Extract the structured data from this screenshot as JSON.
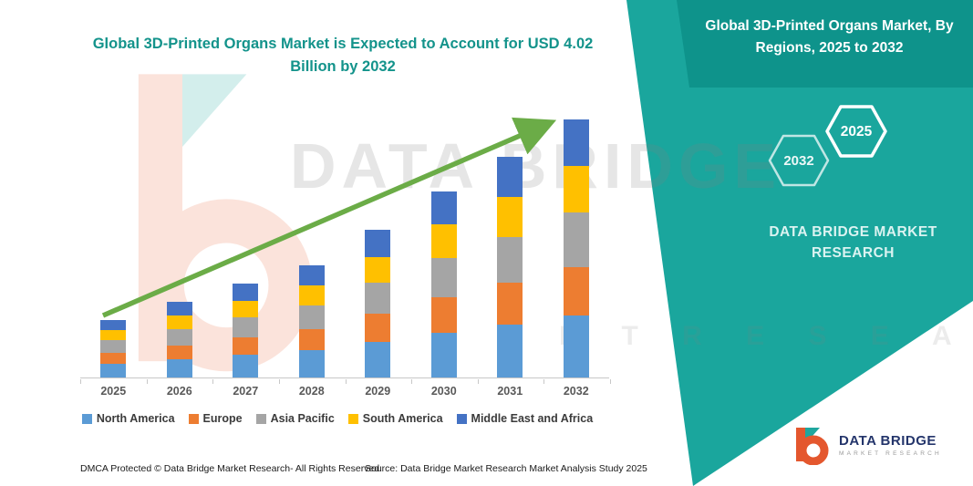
{
  "banner": {
    "title": "Global 3D-Printed Organs Market, By Regions, 2025 to 2032",
    "hex_back_label": "2032",
    "hex_front_label": "2025",
    "brand_text": "DATA BRIDGE MARKET RESEARCH"
  },
  "watermark": {
    "line1": "DATA BRIDGE",
    "line2": "M A R K E T   R E S E A R C H"
  },
  "logo": {
    "title": "DATA BRIDGE",
    "subtitle": "MARKET RESEARCH"
  },
  "footer": {
    "dmca": "DMCA Protected © Data Bridge Market Research-  All Rights Reserved.",
    "source": "Source: Data Bridge Market Research  Market Analysis Study 2025"
  },
  "colors": {
    "teal": "#1AA69D",
    "teal_dark": "#0E938B",
    "title_teal": "#13938B",
    "arrow_green": "#6BAC47",
    "north_america": "#5B9BD5",
    "europe": "#ED7D31",
    "asia_pacific": "#A5A5A5",
    "south_america": "#FFC000",
    "middle_east_africa": "#4472C4"
  },
  "chart_data": {
    "type": "bar",
    "stacked": true,
    "unit": "USD Billion",
    "title": "Global 3D-Printed Organs Market is Expected to Account for USD 4.02 Billion by 2032",
    "categories": [
      "2025",
      "2026",
      "2027",
      "2028",
      "2029",
      "2030",
      "2031",
      "2032"
    ],
    "series": [
      {
        "name": "North America",
        "color": "#5B9BD5",
        "values": [
          0.22,
          0.28,
          0.35,
          0.42,
          0.55,
          0.7,
          0.82,
          0.96
        ]
      },
      {
        "name": "Europe",
        "color": "#ED7D31",
        "values": [
          0.17,
          0.22,
          0.28,
          0.33,
          0.44,
          0.55,
          0.65,
          0.76
        ]
      },
      {
        "name": "Asia Pacific",
        "color": "#A5A5A5",
        "values": [
          0.19,
          0.25,
          0.31,
          0.37,
          0.48,
          0.61,
          0.72,
          0.85
        ]
      },
      {
        "name": "South America",
        "color": "#FFC000",
        "values": [
          0.16,
          0.21,
          0.26,
          0.32,
          0.41,
          0.52,
          0.62,
          0.72
        ]
      },
      {
        "name": "Middle East and Africa",
        "color": "#4472C4",
        "values": [
          0.16,
          0.22,
          0.26,
          0.31,
          0.42,
          0.52,
          0.62,
          0.73
        ]
      }
    ],
    "totals": [
      0.9,
      1.18,
      1.46,
      1.75,
      2.3,
      2.9,
      3.43,
      4.02
    ],
    "ylim": [
      0,
      4.3
    ],
    "legend_position": "bottom",
    "grid": false,
    "annotations": [
      "upward green trend arrow across bars"
    ]
  }
}
